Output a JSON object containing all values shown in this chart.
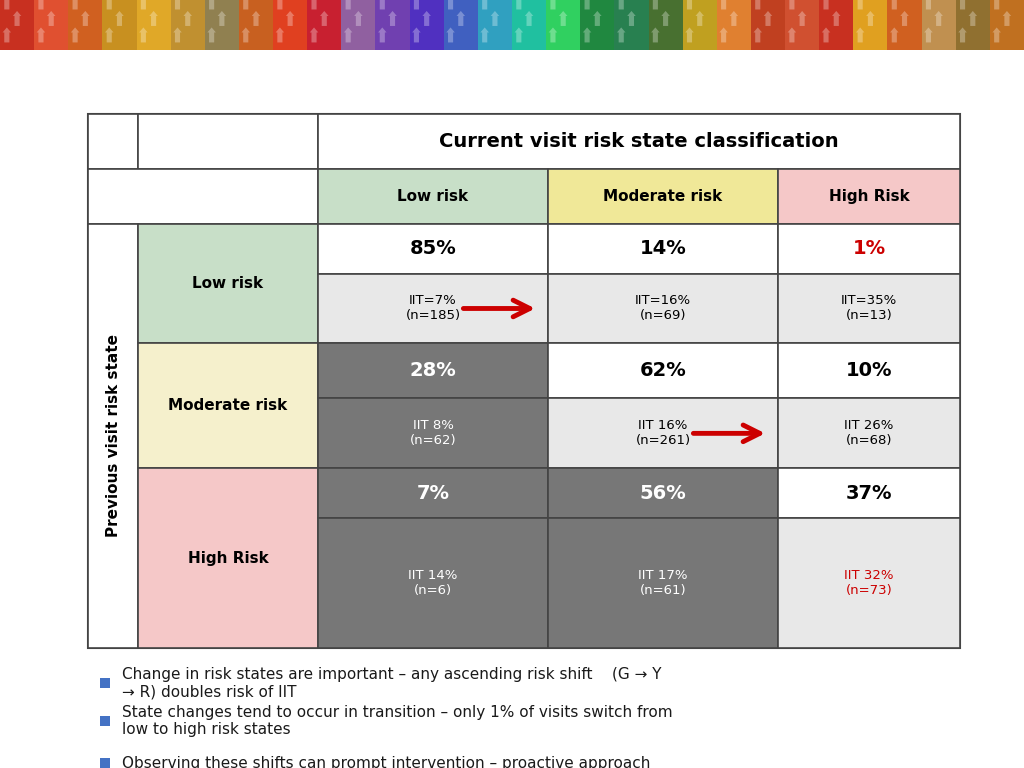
{
  "title": "Current visit risk state classification",
  "col_headers": [
    "Low risk",
    "Moderate risk",
    "High Risk"
  ],
  "row_headers": [
    "Low risk",
    "Moderate risk",
    "High Risk"
  ],
  "y_label": "Previous visit risk state",
  "percentages": [
    [
      "85%",
      "14%",
      "1%"
    ],
    [
      "28%",
      "62%",
      "10%"
    ],
    [
      "7%",
      "56%",
      "37%"
    ]
  ],
  "iit_lines": [
    [
      "IIT=7%\n(n=185)",
      "IIT=16%\n(n=69)",
      "IIT=35%\n(n=13)"
    ],
    [
      "IIT 8%\n(n=62)",
      "IIT 16%\n(n=261)",
      "IIT 26%\n(n=68)"
    ],
    [
      "IIT 14%\n(n=6)",
      "IIT 17%\n(n=61)",
      "IIT 32%\n(n=73)"
    ]
  ],
  "pct_colors": [
    [
      "#000000",
      "#000000",
      "#cc0000"
    ],
    [
      "#ffffff",
      "#000000",
      "#000000"
    ],
    [
      "#ffffff",
      "#ffffff",
      "#000000"
    ]
  ],
  "iit_colors": [
    [
      "#000000",
      "#000000",
      "#000000"
    ],
    [
      "#ffffff",
      "#000000",
      "#000000"
    ],
    [
      "#ffffff",
      "#ffffff",
      "#cc0000"
    ]
  ],
  "row_header_bg": [
    "#c8dfc8",
    "#f5f0cc",
    "#f5c8c8"
  ],
  "col_header_bg": [
    "#c8dfc8",
    "#f0e898",
    "#f5c8c8"
  ],
  "background_color": "#ffffff",
  "bullet_color": "#4472c4",
  "bullet_points": [
    "Change in risk states are important – any ascending risk shift    (G → Y\n→ R) doubles risk of IIT",
    "State changes tend to occur in transition – only 1% of visits switch from\nlow to high risk states",
    "Observing these shifts can prompt intervention – proactive approach"
  ],
  "top_stripe_colors": [
    "#c8302a",
    "#d44020",
    "#cc6020",
    "#c88020",
    "#d4a020",
    "#c8a828",
    "#b09030",
    "#887030",
    "#706020",
    "#586828",
    "#487030",
    "#307840",
    "#288848",
    "#209850",
    "#188858",
    "#188868",
    "#208878",
    "#289888",
    "#30a898",
    "#38b0a8",
    "#40a8b8",
    "#48a0c0",
    "#5090c8",
    "#5878c8",
    "#6060c0",
    "#6848b0",
    "#7030a0",
    "#782888",
    "#802070",
    "#881858",
    "#901040",
    "#981028",
    "#a01018",
    "#c01020",
    "#c82820"
  ],
  "dark_gray": "#777777",
  "light_gray": "#e8e8e8",
  "white": "#ffffff"
}
